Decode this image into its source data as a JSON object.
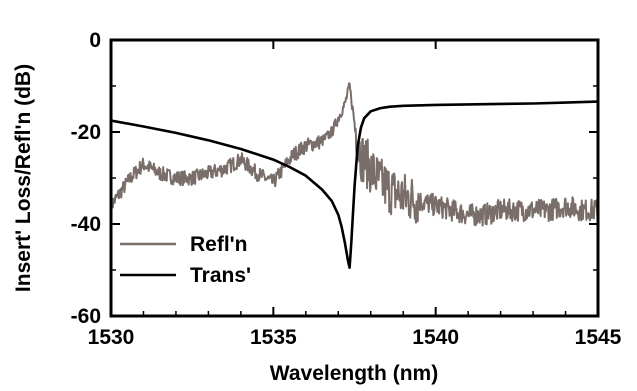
{
  "chart_data": {
    "type": "line",
    "title": "",
    "xlabel": "Wavelength (nm)",
    "ylabel": "Insert' Loss/Refl'n (dB)",
    "xlim": [
      1530,
      1545
    ],
    "ylim": [
      -60,
      0
    ],
    "xticks": [
      1530,
      1535,
      1540,
      1545
    ],
    "yticks": [
      0,
      -20,
      -40,
      -60
    ],
    "xtick_labels": [
      "1530",
      "1535",
      "1540",
      "1545"
    ],
    "ytick_labels": [
      "0",
      "-20",
      "-40",
      "-60"
    ],
    "grid": false,
    "legend_position": "bottom-left",
    "series": [
      {
        "name": "Refl'n",
        "color": "#7a6e6a",
        "style": "noisy",
        "x": [
          1530.0,
          1530.3,
          1530.6,
          1531.0,
          1531.5,
          1532.0,
          1532.5,
          1533.0,
          1533.5,
          1534.0,
          1534.5,
          1535.0,
          1535.3,
          1535.6,
          1536.0,
          1536.5,
          1536.8,
          1537.0,
          1537.2,
          1537.35,
          1537.5,
          1537.7,
          1538.0,
          1538.3,
          1538.7,
          1539.0,
          1539.5,
          1540.0,
          1540.5,
          1541.0,
          1541.5,
          1542.0,
          1542.5,
          1543.0,
          1543.5,
          1544.0,
          1544.5,
          1545.0
        ],
        "values": [
          -36,
          -33,
          -30,
          -27,
          -29,
          -30,
          -30,
          -29,
          -28,
          -26,
          -29,
          -31,
          -28,
          -25,
          -23,
          -22,
          -20,
          -17,
          -14,
          -10,
          -18,
          -25,
          -28,
          -31,
          -33,
          -34,
          -35,
          -36,
          -37,
          -38,
          -38,
          -37,
          -37,
          -37,
          -37,
          -36,
          -37,
          -37
        ]
      },
      {
        "name": "Trans'",
        "color": "#000000",
        "style": "smooth",
        "x": [
          1530.0,
          1531.0,
          1532.0,
          1533.0,
          1534.0,
          1535.0,
          1535.5,
          1536.0,
          1536.5,
          1536.8,
          1537.0,
          1537.1,
          1537.2,
          1537.3,
          1537.35,
          1537.4,
          1537.5,
          1537.6,
          1537.7,
          1537.8,
          1538.0,
          1538.3,
          1538.6,
          1539.0,
          1540.0,
          1541.0,
          1542.0,
          1543.0,
          1544.0,
          1545.0
        ],
        "values": [
          -17.5,
          -18.8,
          -20.2,
          -21.8,
          -23.7,
          -26.0,
          -27.6,
          -29.5,
          -32.5,
          -35.0,
          -38.0,
          -40.5,
          -44.0,
          -48.0,
          -49.5,
          -44.0,
          -32.0,
          -23.0,
          -19.0,
          -17.0,
          -15.5,
          -14.8,
          -14.5,
          -14.3,
          -14.1,
          -14.0,
          -13.9,
          -13.8,
          -13.6,
          -13.4
        ]
      }
    ]
  }
}
